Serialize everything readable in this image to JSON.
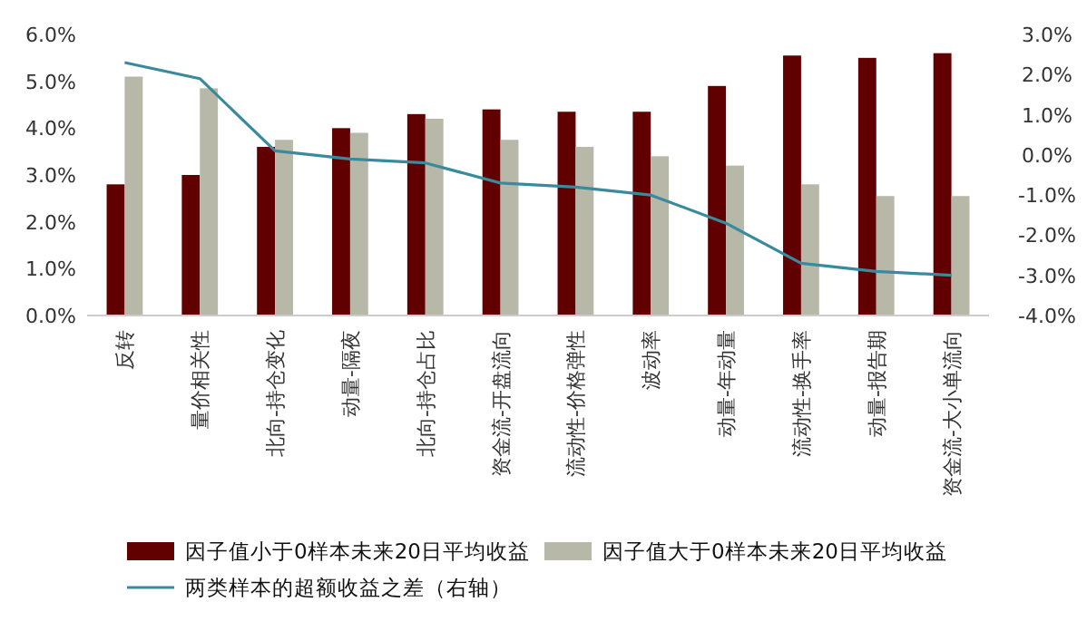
{
  "chart_data": {
    "type": "bar",
    "categories": [
      "反转",
      "量价相关性",
      "北向-持仓变化",
      "动量-隔夜",
      "北向-持仓占比",
      "资金流-开盘流向",
      "流动性-价格弹性",
      "波动率",
      "动量-年动量",
      "流动性-换手率",
      "动量-报告期",
      "资金流-大小单流向"
    ],
    "series": [
      {
        "name": "因子值小于0样本未来20日平均收益",
        "color": "#600000",
        "values": [
          2.8,
          3.0,
          3.6,
          4.0,
          4.3,
          4.4,
          4.35,
          4.35,
          4.9,
          5.55,
          5.5,
          5.6
        ]
      },
      {
        "name": "因子值大于0样本未来20日平均收益",
        "color": "#b8b8a8",
        "values": [
          5.1,
          4.85,
          3.75,
          3.9,
          4.2,
          3.75,
          3.6,
          3.4,
          3.2,
          2.8,
          2.55,
          2.55
        ]
      },
      {
        "name": "两类样本的超额收益之差（右轴）",
        "type": "line",
        "axis": "y2",
        "color": "#3a8a9e",
        "values": [
          2.3,
          1.9,
          0.1,
          -0.1,
          -0.2,
          -0.7,
          -0.8,
          -1.0,
          -1.7,
          -2.7,
          -2.9,
          -3.0
        ]
      }
    ],
    "ylim": [
      0,
      6
    ],
    "yticks": [
      {
        "value": 0,
        "label": "0.0%"
      },
      {
        "value": 1,
        "label": "1.0%"
      },
      {
        "value": 2,
        "label": "2.0%"
      },
      {
        "value": 3,
        "label": "3.0%"
      },
      {
        "value": 4,
        "label": "4.0%"
      },
      {
        "value": 5,
        "label": "5.0%"
      },
      {
        "value": 6,
        "label": "6.0%"
      }
    ],
    "y2lim": [
      -4,
      3
    ],
    "y2ticks": [
      {
        "value": -4,
        "label": "-4.0%"
      },
      {
        "value": -3,
        "label": "-3.0%"
      },
      {
        "value": -2,
        "label": "-2.0%"
      },
      {
        "value": -1,
        "label": "-1.0%"
      },
      {
        "value": 0,
        "label": "0.0%"
      },
      {
        "value": 1,
        "label": "1.0%"
      },
      {
        "value": 2,
        "label": "2.0%"
      },
      {
        "value": 3,
        "label": "3.0%"
      }
    ],
    "legend": "bottom"
  }
}
